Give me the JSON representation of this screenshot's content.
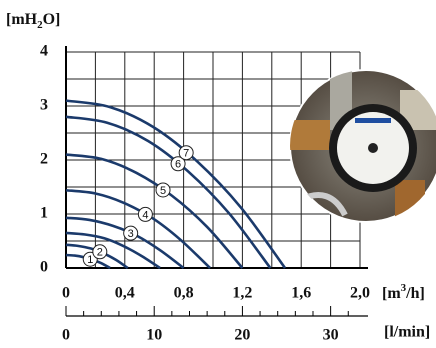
{
  "chart_data": {
    "type": "line",
    "ylabel": [
      "[mH",
      "2",
      "O]"
    ],
    "xlabel": [
      "[m",
      "3",
      "/h]"
    ],
    "x2label": "[l/min]",
    "color": "#1b3a6b",
    "series": [
      {
        "name": "1",
        "x": [
          0,
          0.06,
          0.12,
          0.18,
          0.24,
          0.3
        ],
        "values": [
          0.24,
          0.23,
          0.2,
          0.15,
          0.09,
          0
        ]
      },
      {
        "name": "2",
        "x": [
          0,
          0.08,
          0.17,
          0.25,
          0.34,
          0.42
        ],
        "values": [
          0.43,
          0.41,
          0.36,
          0.28,
          0.15,
          0
        ]
      },
      {
        "name": null,
        "x": [
          0,
          0.13,
          0.26,
          0.38,
          0.51,
          0.64
        ],
        "values": [
          0.65,
          0.62,
          0.55,
          0.42,
          0.23,
          0
        ]
      },
      {
        "name": "3",
        "x": [
          0,
          0.16,
          0.32,
          0.48,
          0.64,
          0.8
        ],
        "values": [
          0.93,
          0.89,
          0.78,
          0.6,
          0.33,
          0
        ]
      },
      {
        "name": "4",
        "x": [
          0,
          0.2,
          0.39,
          0.59,
          0.78,
          0.98
        ],
        "values": [
          1.44,
          1.38,
          1.21,
          0.92,
          0.52,
          0
        ]
      },
      {
        "name": "5",
        "x": [
          0,
          0.24,
          0.48,
          0.72,
          0.96,
          1.2
        ],
        "values": [
          2.1,
          2.02,
          1.76,
          1.34,
          0.76,
          0
        ]
      },
      {
        "name": "6",
        "x": [
          0,
          0.28,
          0.56,
          0.83,
          1.11,
          1.39
        ],
        "values": [
          2.8,
          2.69,
          2.35,
          1.79,
          1.01,
          0
        ]
      },
      {
        "name": "7",
        "x": [
          0,
          0.3,
          0.6,
          0.89,
          1.19,
          1.49
        ],
        "values": [
          3.1,
          2.98,
          2.6,
          1.98,
          1.12,
          0
        ]
      }
    ],
    "xlim": [
      0,
      2
    ],
    "ylim": [
      0,
      4
    ],
    "xticks": [
      0,
      {
        "value": 0.4,
        "label": "0,4"
      },
      {
        "value": 0.8,
        "label": "0,8"
      },
      {
        "value": 1.2,
        "label": "1,2"
      },
      {
        "value": 1.6,
        "label": "1,6"
      },
      {
        "value": 2.0,
        "label": "2,0"
      }
    ],
    "yticks": [
      0,
      1,
      2,
      3,
      4
    ],
    "xgrid": [
      0,
      0.2,
      0.4,
      0.6,
      0.8,
      1.0,
      1.2,
      1.4,
      1.6,
      1.8,
      2.0
    ],
    "ygrid": [
      0,
      0.5,
      1,
      1.5,
      2,
      2.5,
      3,
      3.5,
      4
    ],
    "x2lim": [
      0,
      33.33
    ],
    "x2ticks": [
      0,
      10,
      20,
      30
    ],
    "x2minor": [
      2,
      4,
      6,
      8,
      12,
      14,
      16,
      18,
      22,
      24,
      26,
      28,
      32
    ],
    "grid": true
  }
}
